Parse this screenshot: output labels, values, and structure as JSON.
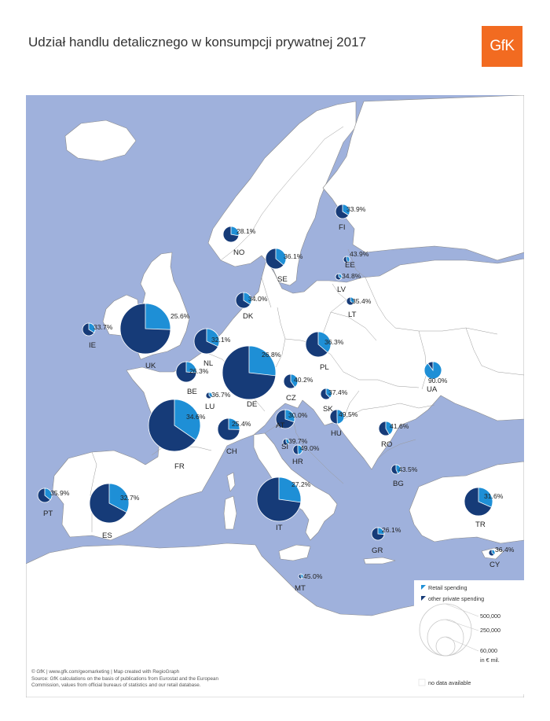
{
  "title": "Udział handlu detalicznego w konsumpcji prywatnej 2017",
  "logo": "GfK",
  "colors": {
    "sea": "#9fb1dc",
    "land": "#ffffff",
    "non_data_land": "#ffffff",
    "border": "#8a8a8a",
    "retail": "#1e8fd6",
    "other": "#163b78",
    "label": "#222222"
  },
  "legend": {
    "retail_label": "Retail spending",
    "other_label": "other private spending",
    "size_values": [
      500000,
      250000,
      60000
    ],
    "size_labels": [
      "500,000",
      "250,000",
      "60,000"
    ],
    "unit": "in € mil.",
    "no_data_label": "no data available"
  },
  "footer": {
    "line1": "© GfK | www.gfk.com/geomarketing | Map created with RegioGraph",
    "line2": "Source: GfK calculations on the basis of publications from Eurostat and the European",
    "line3": "Commission, values from official bureaus of statistics and our retail database."
  },
  "countries": [
    {
      "code": "UK",
      "share": "25.6%",
      "value": 25.6
    },
    {
      "code": "DE",
      "share": "26.8%",
      "value": 26.8
    },
    {
      "code": "FR",
      "share": "34.6%",
      "value": 34.6
    },
    {
      "code": "IT",
      "share": "27.2%",
      "value": 27.2
    },
    {
      "code": "ES",
      "share": "32.7%",
      "value": 32.7
    },
    {
      "code": "TR",
      "share": "31.6%",
      "value": 31.6
    },
    {
      "code": "PL",
      "share": "36.3%",
      "value": 36.3
    },
    {
      "code": "NL",
      "share": "32.1%",
      "value": 32.1
    },
    {
      "code": "SE",
      "share": "36.1%",
      "value": 36.1
    },
    {
      "code": "CH",
      "share": "25.4%",
      "value": 25.4
    },
    {
      "code": "BE",
      "share": "26.3%",
      "value": 26.3
    },
    {
      "code": "NO",
      "share": "28.1%",
      "value": 28.1
    },
    {
      "code": "AT",
      "share": "30.0%",
      "value": 30.0
    },
    {
      "code": "DK",
      "share": "34.0%",
      "value": 34.0
    },
    {
      "code": "IE",
      "share": "33.7%",
      "value": 33.7
    },
    {
      "code": "FI",
      "share": "33.9%",
      "value": 33.9
    },
    {
      "code": "PT",
      "share": "35.9%",
      "value": 35.9
    },
    {
      "code": "CZ",
      "share": "40.2%",
      "value": 40.2
    },
    {
      "code": "RO",
      "share": "41.6%",
      "value": 41.6
    },
    {
      "code": "GR",
      "share": "26.1%",
      "value": 26.1
    },
    {
      "code": "HU",
      "share": "49.5%",
      "value": 49.5
    },
    {
      "code": "UA",
      "share": "90.0%",
      "value": 90.0
    },
    {
      "code": "SK",
      "share": "37.4%",
      "value": 37.4
    },
    {
      "code": "BG",
      "share": "43.5%",
      "value": 43.5
    },
    {
      "code": "HR",
      "share": "49.0%",
      "value": 49.0
    },
    {
      "code": "SI",
      "share": "39.7%",
      "value": 39.7
    },
    {
      "code": "LT",
      "share": "35.4%",
      "value": 35.4
    },
    {
      "code": "LU",
      "share": "36.7%",
      "value": 36.7
    },
    {
      "code": "LV",
      "share": "34.8%",
      "value": 34.8
    },
    {
      "code": "EE",
      "share": "43.9%",
      "value": 43.9
    },
    {
      "code": "CY",
      "share": "36.4%",
      "value": 36.4
    },
    {
      "code": "MT",
      "share": "45.0%",
      "value": 45.0
    }
  ]
}
